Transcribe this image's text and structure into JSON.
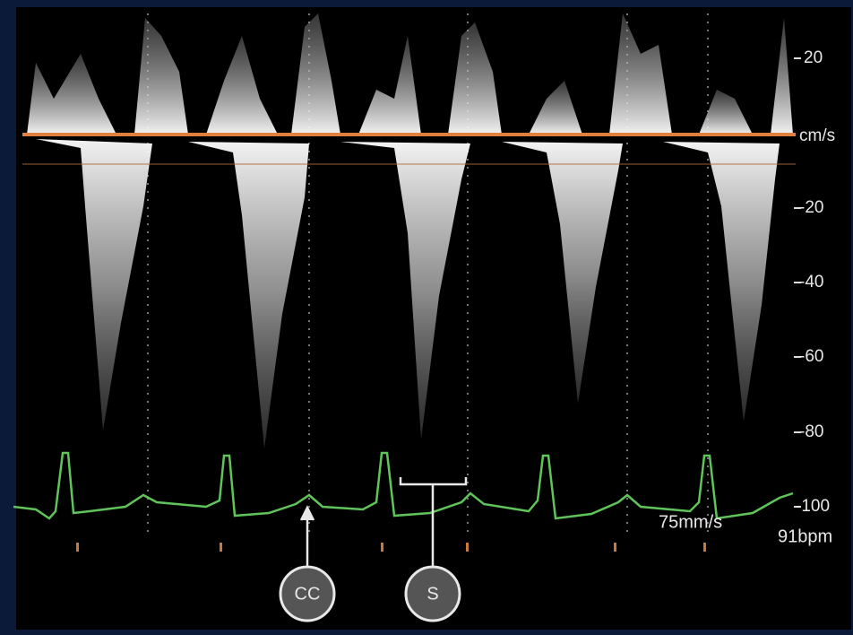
{
  "scale": {
    "labels": [
      "20",
      "cm/s",
      "-20",
      "-40",
      "-60",
      "-80",
      "-100"
    ]
  },
  "sweep_speed": "75mm/s",
  "heart_rate": "91bpm",
  "callouts": [
    "CC",
    "S"
  ]
}
